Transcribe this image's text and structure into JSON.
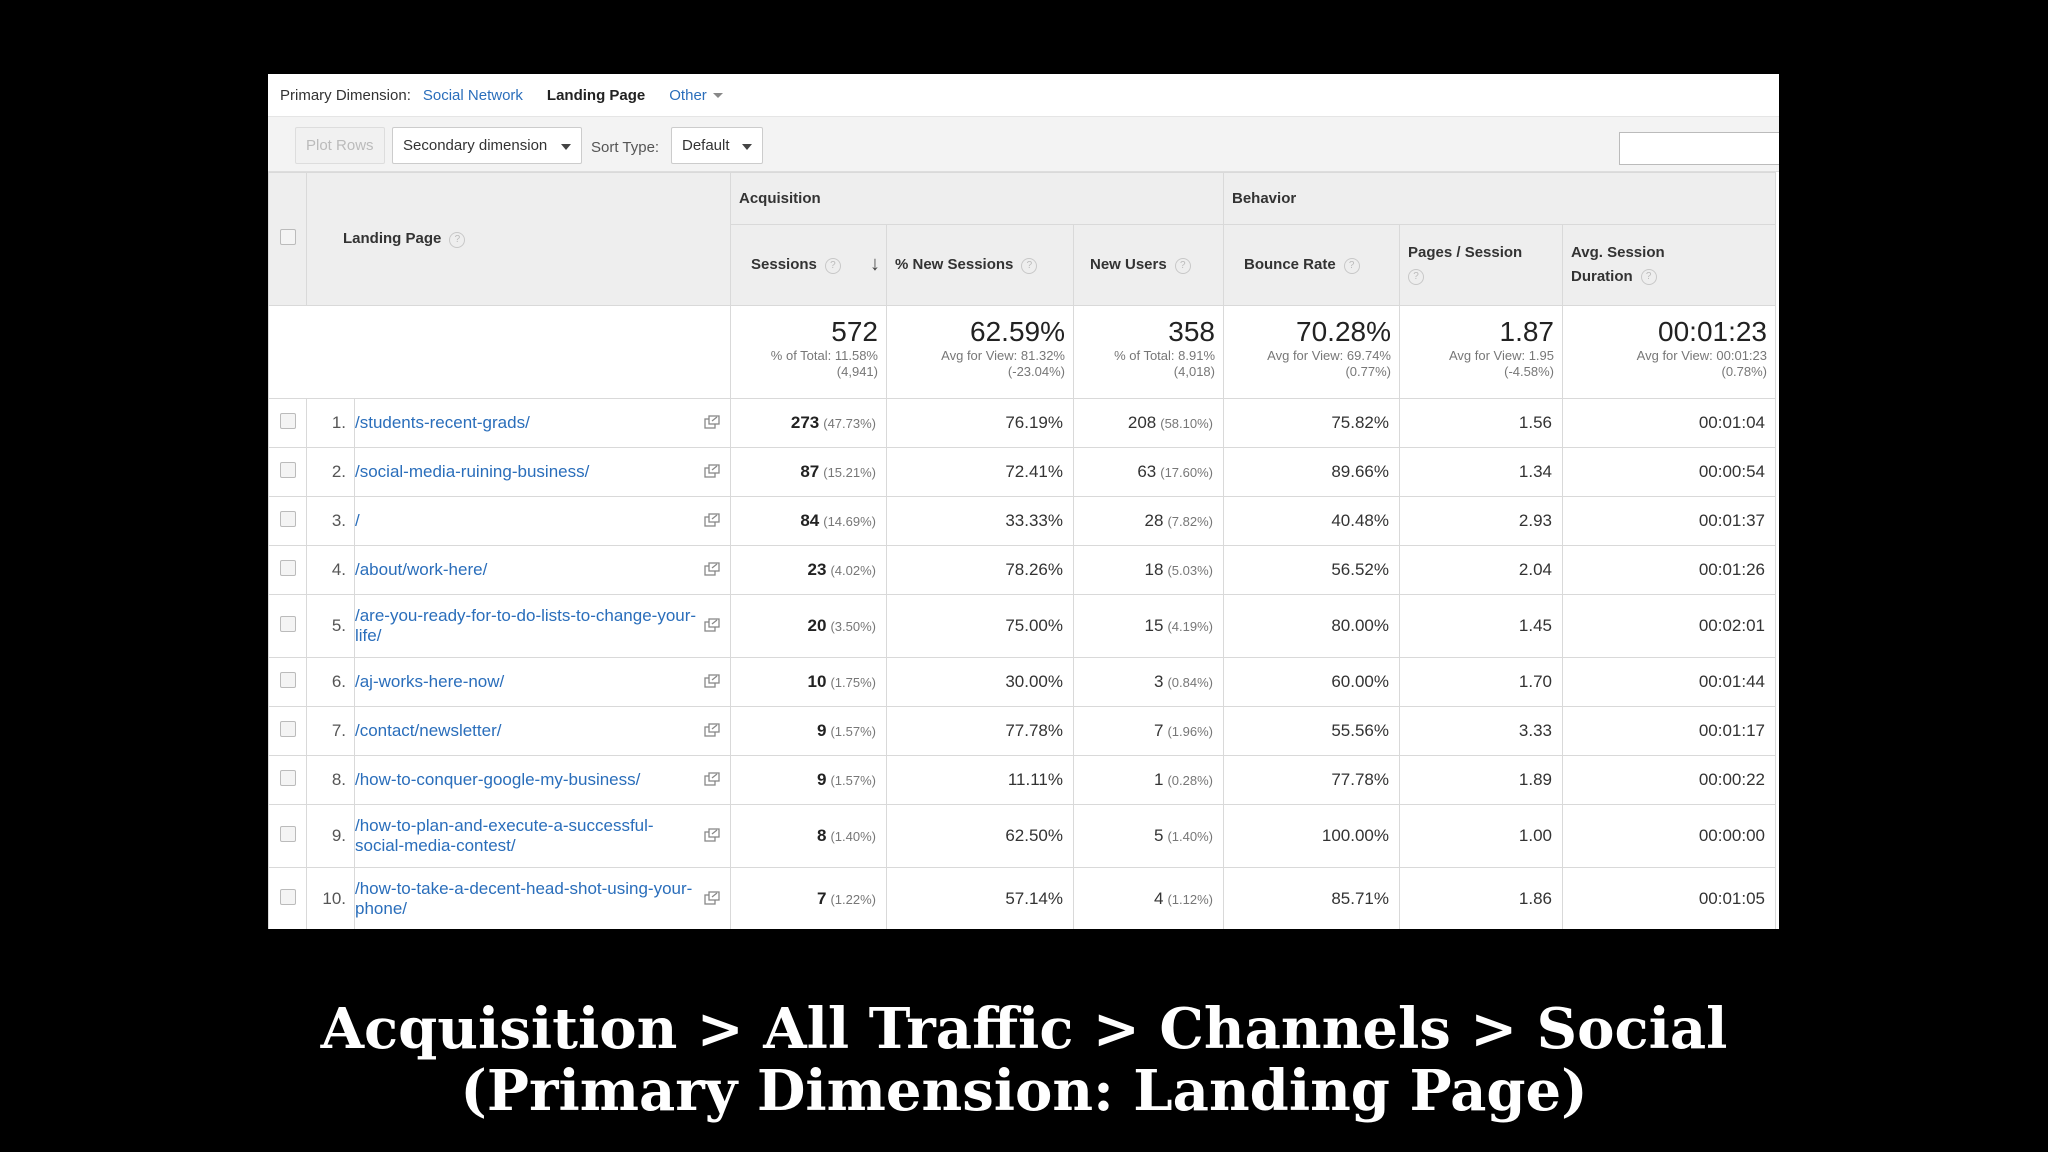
{
  "dimension_bar": {
    "label": "Primary Dimension:",
    "options": [
      "Social Network",
      "Landing Page",
      "Other"
    ]
  },
  "toolbar": {
    "plot_rows": "Plot Rows",
    "secondary_dimension": "Secondary dimension",
    "sort_type_label": "Sort Type:",
    "sort_type_value": "Default",
    "search_value": ""
  },
  "table": {
    "groups": {
      "acquisition": "Acquisition",
      "behavior": "Behavior"
    },
    "headers": {
      "landing_page": "Landing Page",
      "sessions": "Sessions",
      "new_sessions_pct": "% New Sessions",
      "new_users": "New Users",
      "bounce_rate": "Bounce Rate",
      "pages_session": "Pages / Session",
      "avg_session_duration_1": "Avg. Session",
      "avg_session_duration_2": "Duration"
    },
    "totals": {
      "sessions": {
        "value": "572",
        "sub1": "% of Total: 11.58%",
        "sub2": "(4,941)"
      },
      "new_sessions_pct": {
        "value": "62.59%",
        "sub1": "Avg for View: 81.32%",
        "sub2": "(-23.04%)"
      },
      "new_users": {
        "value": "358",
        "sub1": "% of Total: 8.91%",
        "sub2": "(4,018)"
      },
      "bounce_rate": {
        "value": "70.28%",
        "sub1": "Avg for View: 69.74%",
        "sub2": "(0.77%)"
      },
      "pages_session": {
        "value": "1.87",
        "sub1": "Avg for View: 1.95",
        "sub2": "(-4.58%)"
      },
      "avg_duration": {
        "value": "00:01:23",
        "sub1": "Avg for View: 00:01:23",
        "sub2": "(0.78%)"
      }
    },
    "rows": [
      {
        "num": "1.",
        "page": "/students-recent-grads/",
        "sessions": "273",
        "sessions_pct": "(47.73%)",
        "new_sessions": "76.19%",
        "new_users": "208",
        "new_users_pct": "(58.10%)",
        "bounce": "75.82%",
        "pages": "1.56",
        "duration": "00:01:04"
      },
      {
        "num": "2.",
        "page": "/social-media-ruining-business/",
        "sessions": "87",
        "sessions_pct": "(15.21%)",
        "new_sessions": "72.41%",
        "new_users": "63",
        "new_users_pct": "(17.60%)",
        "bounce": "89.66%",
        "pages": "1.34",
        "duration": "00:00:54"
      },
      {
        "num": "3.",
        "page": "/",
        "sessions": "84",
        "sessions_pct": "(14.69%)",
        "new_sessions": "33.33%",
        "new_users": "28",
        "new_users_pct": "(7.82%)",
        "bounce": "40.48%",
        "pages": "2.93",
        "duration": "00:01:37"
      },
      {
        "num": "4.",
        "page": "/about/work-here/",
        "sessions": "23",
        "sessions_pct": "(4.02%)",
        "new_sessions": "78.26%",
        "new_users": "18",
        "new_users_pct": "(5.03%)",
        "bounce": "56.52%",
        "pages": "2.04",
        "duration": "00:01:26"
      },
      {
        "num": "5.",
        "page": "/are-you-ready-for-to-do-lists-to-change-your-life/",
        "sessions": "20",
        "sessions_pct": "(3.50%)",
        "new_sessions": "75.00%",
        "new_users": "15",
        "new_users_pct": "(4.19%)",
        "bounce": "80.00%",
        "pages": "1.45",
        "duration": "00:02:01"
      },
      {
        "num": "6.",
        "page": "/aj-works-here-now/",
        "sessions": "10",
        "sessions_pct": "(1.75%)",
        "new_sessions": "30.00%",
        "new_users": "3",
        "new_users_pct": "(0.84%)",
        "bounce": "60.00%",
        "pages": "1.70",
        "duration": "00:01:44"
      },
      {
        "num": "7.",
        "page": "/contact/newsletter/",
        "sessions": "9",
        "sessions_pct": "(1.57%)",
        "new_sessions": "77.78%",
        "new_users": "7",
        "new_users_pct": "(1.96%)",
        "bounce": "55.56%",
        "pages": "3.33",
        "duration": "00:01:17"
      },
      {
        "num": "8.",
        "page": "/how-to-conquer-google-my-business/",
        "sessions": "9",
        "sessions_pct": "(1.57%)",
        "new_sessions": "11.11%",
        "new_users": "1",
        "new_users_pct": "(0.28%)",
        "bounce": "77.78%",
        "pages": "1.89",
        "duration": "00:00:22"
      },
      {
        "num": "9.",
        "page": "/how-to-plan-and-execute-a-successful-social-media-contest/",
        "sessions": "8",
        "sessions_pct": "(1.40%)",
        "new_sessions": "62.50%",
        "new_users": "5",
        "new_users_pct": "(1.40%)",
        "bounce": "100.00%",
        "pages": "1.00",
        "duration": "00:00:00"
      },
      {
        "num": "10.",
        "page": "/how-to-take-a-decent-head-shot-using-your-phone/",
        "sessions": "7",
        "sessions_pct": "(1.22%)",
        "new_sessions": "57.14%",
        "new_users": "4",
        "new_users_pct": "(1.12%)",
        "bounce": "85.71%",
        "pages": "1.86",
        "duration": "00:01:05"
      }
    ]
  },
  "caption": {
    "line1": "Acquisition > All Traffic > Channels > Social",
    "line2": "(Primary Dimension: Landing Page)"
  },
  "icons": {
    "help": "?",
    "sort_arrow": "↓"
  },
  "colors": {
    "link": "#2a6ebb",
    "background": "#000000"
  }
}
